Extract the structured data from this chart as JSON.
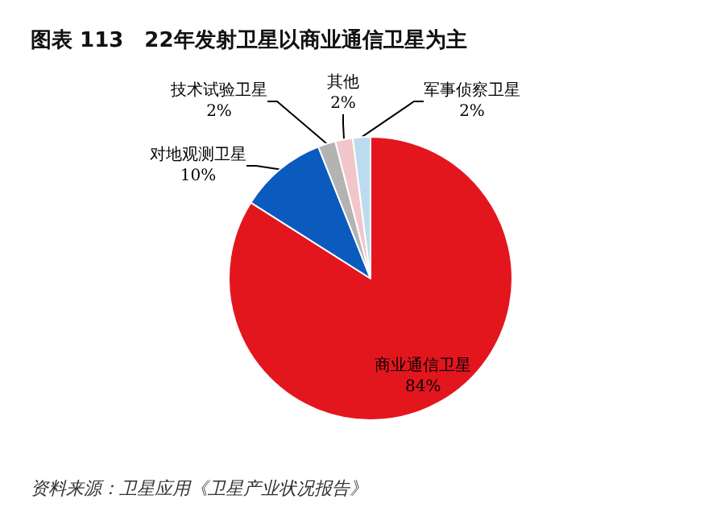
{
  "chart_data": {
    "type": "pie",
    "title": "图表 113　22年发射卫星以商业通信卫星为主",
    "categories": [
      "商业通信卫星",
      "对地观测卫星",
      "技术试验卫星",
      "其他",
      "军事侦察卫星"
    ],
    "values": [
      84,
      10,
      2,
      2,
      2
    ],
    "colors": [
      "#e3161e",
      "#0b5bbf",
      "#b3b3b3",
      "#f1c6ca",
      "#bcdbef"
    ],
    "value_labels": [
      "84%",
      "10%",
      "2%",
      "2%",
      "2%"
    ],
    "legend": false,
    "annotations": [
      "资料来源：卫星应用《卫星产业状况报告》"
    ]
  }
}
